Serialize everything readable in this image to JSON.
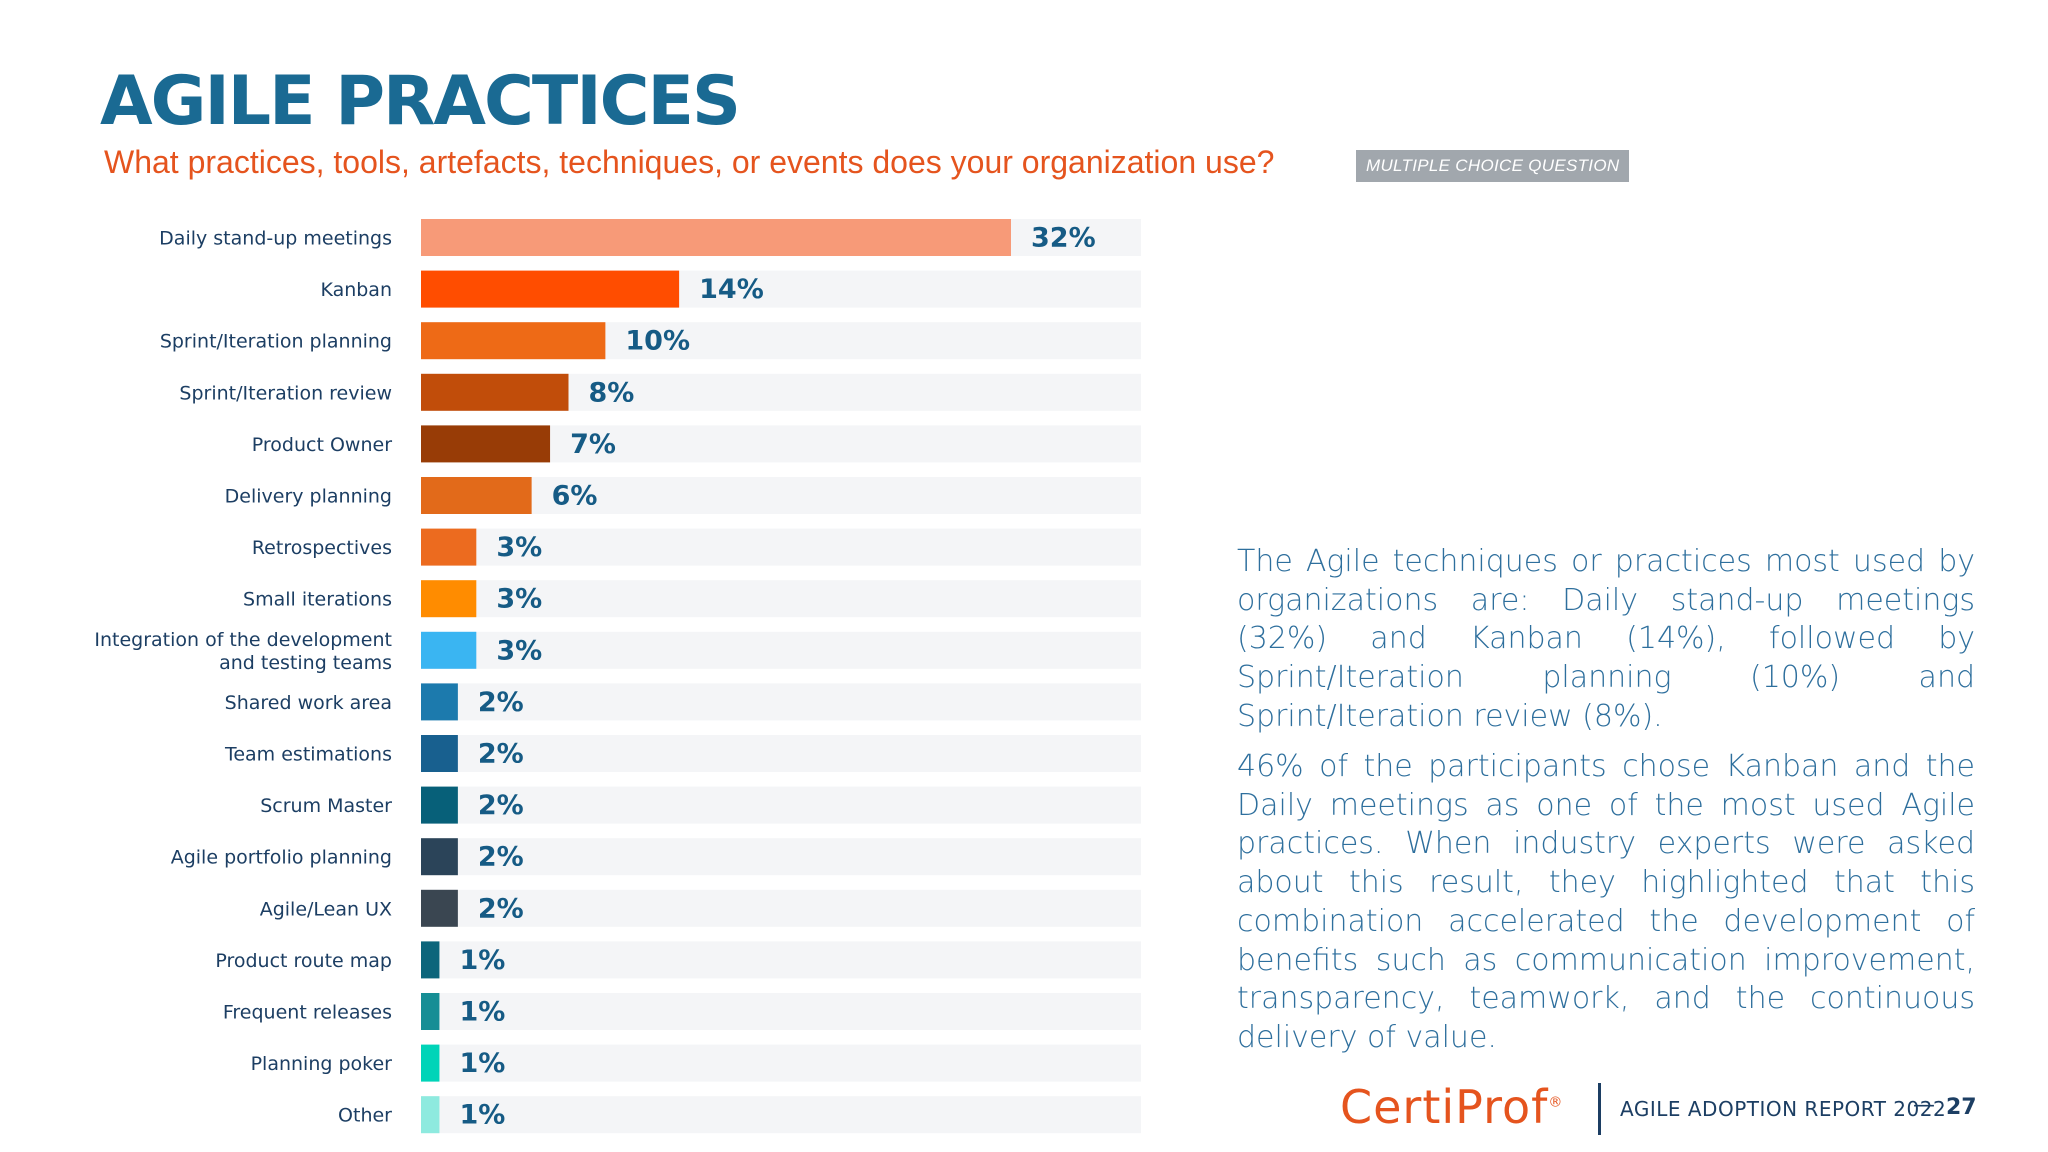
{
  "header": {
    "title": "AGILE PRACTICES",
    "subtitle": "What practices, tools, artefacts, techniques, or events does your organization use?",
    "badge": "MULTIPLE CHOICE QUESTION"
  },
  "chart_data": {
    "type": "bar",
    "orientation": "horizontal",
    "title": "",
    "xlabel": "",
    "ylabel": "",
    "xlim": [
      0,
      40
    ],
    "grid": false,
    "legend": "none",
    "categories": [
      "Daily stand-up meetings",
      "Kanban",
      "Sprint/Iteration planning",
      "Sprint/Iteration review",
      "Product Owner",
      "Delivery planning",
      "Retrospectives",
      "Small iterations",
      "Integration of the development and testing teams",
      "Shared work area",
      "Team estimations",
      "Scrum Master",
      "Agile portfolio planning",
      "Agile/Lean UX",
      "Product route map",
      "Frequent releases",
      "Planning poker",
      "Other"
    ],
    "category_lines": [
      [
        "Daily stand-up meetings"
      ],
      [
        "Kanban"
      ],
      [
        "Sprint/Iteration planning"
      ],
      [
        "Sprint/Iteration review"
      ],
      [
        "Product Owner"
      ],
      [
        "Delivery planning"
      ],
      [
        "Retrospectives"
      ],
      [
        "Small iterations"
      ],
      [
        "Integration of the development",
        "and testing teams"
      ],
      [
        "Shared work area"
      ],
      [
        "Team estimations"
      ],
      [
        "Scrum Master"
      ],
      [
        "Agile portfolio planning"
      ],
      [
        "Agile/Lean UX"
      ],
      [
        "Product route map"
      ],
      [
        "Frequent releases"
      ],
      [
        "Planning poker"
      ],
      [
        "Other"
      ]
    ],
    "values": [
      32,
      14,
      10,
      8,
      7,
      6,
      3,
      3,
      3,
      2,
      2,
      2,
      2,
      2,
      1,
      1,
      1,
      1
    ],
    "value_labels": [
      "32%",
      "14%",
      "10%",
      "8%",
      "7%",
      "6%",
      "3%",
      "3%",
      "3%",
      "2%",
      "2%",
      "2%",
      "2%",
      "2%",
      "1%",
      "1%",
      "1%",
      "1%"
    ],
    "colors": [
      "#f79a78",
      "#ff4d00",
      "#ee6a16",
      "#c14d0a",
      "#983c06",
      "#e26a1a",
      "#ec6b1f",
      "#ff8c00",
      "#3ab5f2",
      "#1c7aad",
      "#18608f",
      "#076079",
      "#2b4459",
      "#3a4651",
      "#0c657b",
      "#168e95",
      "#00d4b8",
      "#8eeadf"
    ],
    "track_color": "#f4f5f7"
  },
  "description": {
    "paragraph1": "The Agile techniques or practices most  used by organizations are: Daily stand-up meetings (32%) and Kanban (14%), followed by Sprint/Iteration planning (10%) and Sprint/Iteration review (8%).",
    "paragraph2": "46% of the participants chose Kanban and the Daily meetings as one of the most used Agile practices. When industry experts were asked about this result, they highlighted that this combination accelerated the development of benefits such as communication improvement, transparency, teamwork, and the continuous delivery of value."
  },
  "footer": {
    "logo": "CertiProf",
    "logo_mark": "®",
    "report": "AGILE ADOPTION REPORT 2022",
    "dash": "—",
    "page": "27"
  }
}
